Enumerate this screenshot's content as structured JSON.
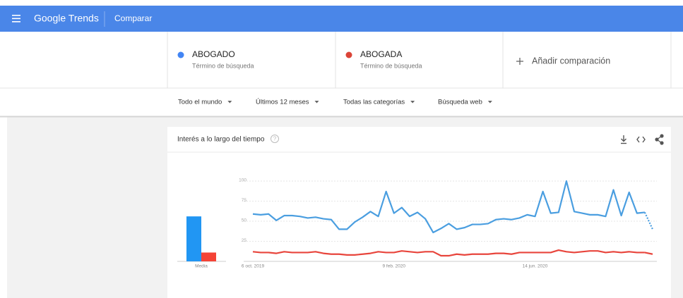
{
  "header": {
    "logo": "Google Trends",
    "section": "Comparar"
  },
  "terms": [
    {
      "name": "ABOGADO",
      "subtitle": "Término de búsqueda",
      "color": "#4285f4"
    },
    {
      "name": "ABOGADA",
      "subtitle": "Término de búsqueda",
      "color": "#db4437"
    }
  ],
  "add_comparison": "Añadir comparación",
  "filters": [
    "Todo el mundo",
    "Últimos 12 meses",
    "Todas las categorías",
    "Búsqueda web"
  ],
  "chart_data": {
    "type": "line",
    "title": "Interés a lo largo del tiempo",
    "categories": [
      "6 oct. 2019",
      null,
      null,
      null,
      null,
      null,
      null,
      null,
      null,
      null,
      null,
      null,
      null,
      null,
      null,
      null,
      null,
      null,
      "9 feb. 2020",
      null,
      null,
      null,
      null,
      null,
      null,
      null,
      null,
      null,
      null,
      null,
      null,
      null,
      null,
      null,
      null,
      null,
      "14 jun. 2020",
      null,
      null,
      null,
      null,
      null,
      null,
      null,
      null,
      null,
      null,
      null,
      null,
      null,
      null,
      null
    ],
    "series": [
      {
        "name": "ABOGADO",
        "color": "#4a9ee0",
        "average": 56,
        "values": [
          59,
          58,
          59,
          51,
          57,
          57,
          56,
          54,
          55,
          53,
          52,
          40,
          40,
          49,
          55,
          62,
          56,
          87,
          60,
          67,
          56,
          61,
          53,
          36,
          41,
          47,
          40,
          42,
          46,
          46,
          47,
          52,
          53,
          52,
          54,
          58,
          56,
          87,
          60,
          61,
          100,
          62,
          60,
          58,
          58,
          56,
          89,
          57,
          86,
          60,
          61,
          40
        ]
      },
      {
        "name": "ABOGADA",
        "color": "#e8453c",
        "average": 11,
        "values": [
          12,
          11,
          11,
          10,
          12,
          11,
          11,
          11,
          12,
          10,
          9,
          9,
          8,
          8,
          9,
          10,
          12,
          11,
          11,
          13,
          12,
          11,
          12,
          12,
          7,
          7,
          9,
          8,
          9,
          9,
          9,
          10,
          10,
          9,
          11,
          11,
          11,
          11,
          11,
          14,
          12,
          11,
          12,
          13,
          13,
          11,
          12,
          11,
          12,
          11,
          11,
          9
        ]
      }
    ],
    "average_label": "Media",
    "average_colors": [
      "#2196f3",
      "#f44336"
    ],
    "ylim": [
      0,
      100
    ],
    "yticks": [
      25,
      50,
      75,
      100
    ],
    "grid": true
  }
}
